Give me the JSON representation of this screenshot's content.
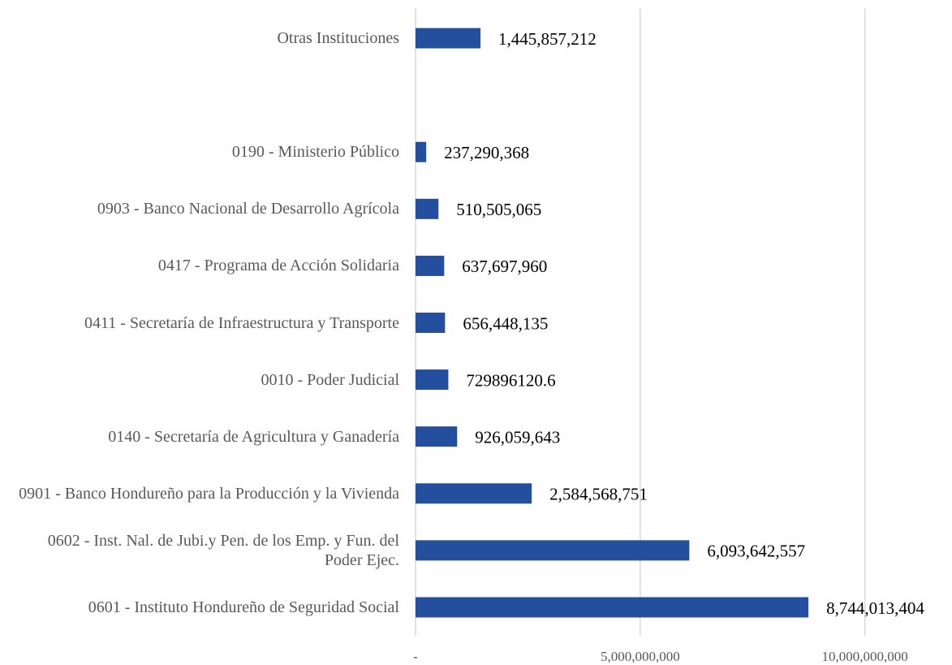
{
  "chart_data": {
    "type": "bar",
    "orientation": "horizontal",
    "categories": [
      "Otras Instituciones",
      null,
      "0190 - Ministerio Público",
      "0903 - Banco Nacional de Desarrollo Agrícola",
      "0417 - Programa de Acción Solidaria",
      "0411 - Secretaría de Infraestructura y Transporte",
      "0010 - Poder Judicial",
      "0140 - Secretaría de Agricultura y Ganadería",
      "0901 - Banco Hondureño para la Producción y la Vivienda",
      "0602 - Inst. Nal. de Jubi.y Pen. de los Emp. y Fun. del Poder Ejec.",
      "0601 - Instituto Hondureño de Seguridad Social"
    ],
    "values": [
      1445857212,
      null,
      237290368,
      510505065,
      637697960,
      656448135,
      729896120.6,
      926059643,
      2584568751,
      6093642557,
      8744013404
    ],
    "value_labels": [
      "1,445,857,212",
      null,
      "237,290,368",
      "510,505,065",
      "637,697,960",
      "656,448,135",
      "729896120.6",
      "926,059,643",
      "2,584,568,751",
      "6,093,642,557",
      "8,744,013,404"
    ],
    "color": "#234f9e",
    "xlim": [
      0,
      11000000000
    ],
    "xticks": [
      {
        "value": 0,
        "label": "-"
      },
      {
        "value": 5000000000,
        "label": "5,000,000,000"
      },
      {
        "value": 10000000000,
        "label": "10,000,000,000"
      }
    ],
    "grid": true
  }
}
